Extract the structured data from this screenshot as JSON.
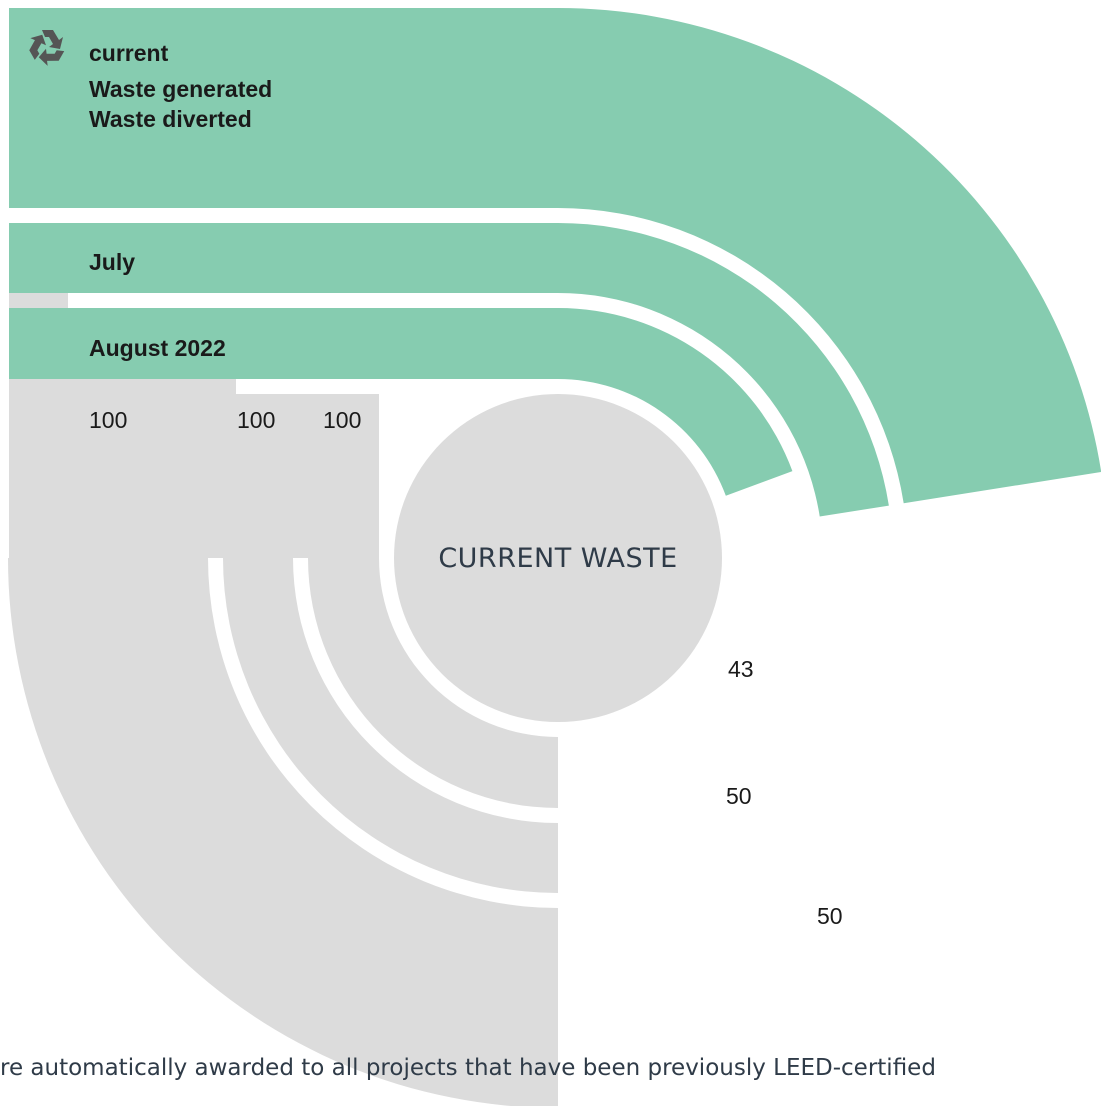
{
  "colors": {
    "diverted": "#86ccb0",
    "generated": "#dcdcdc",
    "background": "#ffffff",
    "icon": "#555555"
  },
  "legend": {
    "icon": "recycle-icon",
    "title": "current",
    "items": [
      "Waste generated",
      "Waste diverted"
    ]
  },
  "center_label": "CURRENT WASTE",
  "footer_text": "re automatically awarded to all projects that have been previously LEED-certified",
  "chart_data": {
    "type": "radial-bar",
    "max": 100,
    "series": [
      {
        "name": "current",
        "generated": 100,
        "diverted": 50,
        "generated_label": "100",
        "diverted_label": "50"
      },
      {
        "name": "July",
        "generated": 100,
        "diverted": 50,
        "generated_label": "100",
        "diverted_label": "50"
      },
      {
        "name": "August 2022",
        "generated": 100,
        "diverted": 43,
        "generated_label": "100",
        "diverted_label": "43"
      }
    ]
  }
}
